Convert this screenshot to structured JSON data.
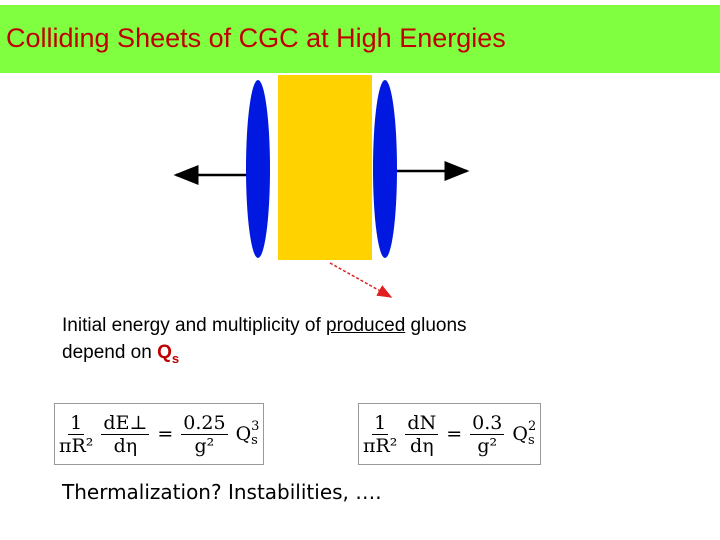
{
  "header": {
    "title": "Colliding Sheets of CGC at High Energies"
  },
  "body": {
    "line1": {
      "before": "Initial energy and multiplicity of",
      "underlined": "produced",
      "after": "gluons"
    },
    "line2": {
      "text": "depend on",
      "symbol": "Q",
      "subscript": "s"
    },
    "equations": [
      {
        "f1": [
          "1",
          "πR²"
        ],
        "f2": [
          "dE⊥",
          "dη"
        ],
        "eq": "=",
        "f3": [
          "0.25",
          "g²"
        ],
        "q": {
          "base": "Q",
          "sub": "s",
          "sup": "3"
        }
      },
      {
        "f1": [
          "1",
          "πR²"
        ],
        "f2": [
          "dN",
          "dη"
        ],
        "eq": "=",
        "f3": [
          "0.3",
          "g²"
        ],
        "q": {
          "base": "Q",
          "sub": "s",
          "sup": "2"
        }
      }
    ],
    "footer": "Thermalization? Instabilities, …."
  }
}
